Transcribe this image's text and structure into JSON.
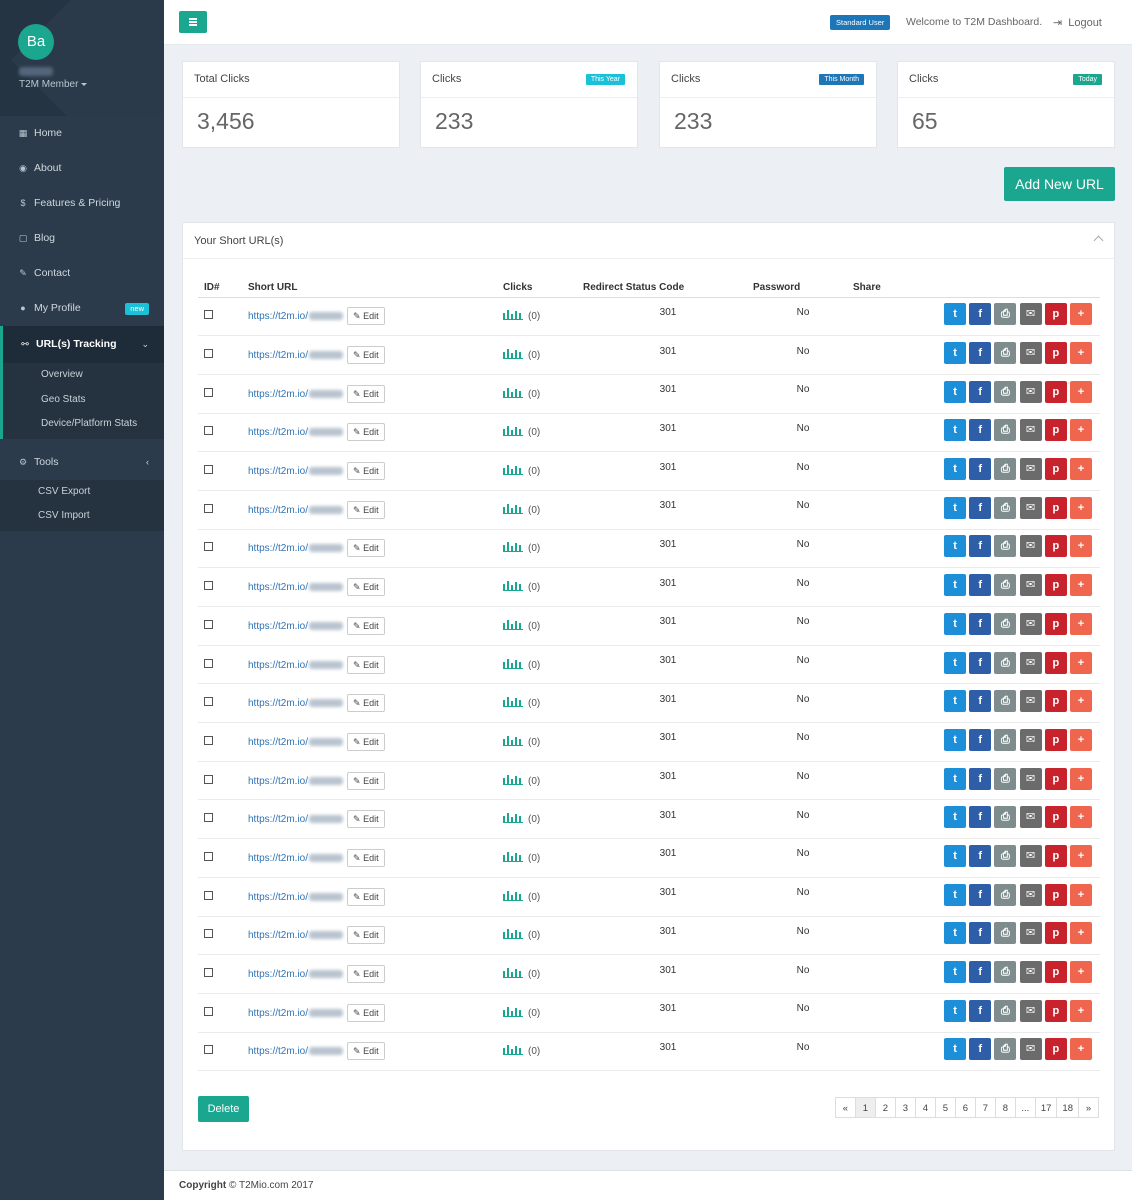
{
  "sidebar": {
    "avatar_initials": "Ba",
    "user_role": "T2M Member",
    "menu": [
      {
        "label": "Home",
        "icon": "grid-icon"
      },
      {
        "label": "About",
        "icon": "globe-icon"
      },
      {
        "label": "Features & Pricing",
        "icon": "dollar-icon"
      },
      {
        "label": "Blog",
        "icon": "blog-icon"
      },
      {
        "label": "Contact",
        "icon": "edit-icon"
      },
      {
        "label": "My Profile",
        "icon": "user-icon",
        "badge": "new"
      }
    ],
    "tracking": {
      "label": "URL(s) Tracking",
      "sub": [
        "Overview",
        "Geo Stats",
        "Device/Platform Stats"
      ]
    },
    "tools": {
      "label": "Tools",
      "sub": [
        "CSV Export",
        "CSV Import"
      ]
    }
  },
  "header": {
    "role_badge": "Standard User",
    "welcome": "Welcome to T2M Dashboard.",
    "logout": "Logout"
  },
  "stats": [
    {
      "title": "Total Clicks",
      "tag": "",
      "value": "3,456"
    },
    {
      "title": "Clicks",
      "tag": "This Year",
      "value": "233"
    },
    {
      "title": "Clicks",
      "tag": "This Month",
      "value": "233"
    },
    {
      "title": "Clicks",
      "tag": "Today",
      "value": "65"
    }
  ],
  "add_button": "Add New URL",
  "panel": {
    "title": "Your Short URL(s)",
    "columns": {
      "id": "ID#",
      "url": "Short URL",
      "clicks": "Clicks",
      "code": "Redirect Status Code",
      "password": "Password",
      "share": "Share"
    },
    "rows": [
      {
        "url": "https://t2m.io/",
        "clicks": "(0)",
        "code": "301",
        "password": "No",
        "edit": "Edit"
      },
      {
        "url": "https://t2m.io/",
        "clicks": "(0)",
        "code": "301",
        "password": "No",
        "edit": "Edit"
      },
      {
        "url": "https://t2m.io/",
        "clicks": "(0)",
        "code": "301",
        "password": "No",
        "edit": "Edit"
      },
      {
        "url": "https://t2m.io/",
        "clicks": "(0)",
        "code": "301",
        "password": "No",
        "edit": "Edit"
      },
      {
        "url": "https://t2m.io/",
        "clicks": "(0)",
        "code": "301",
        "password": "No",
        "edit": "Edit"
      },
      {
        "url": "https://t2m.io/",
        "clicks": "(0)",
        "code": "301",
        "password": "No",
        "edit": "Edit"
      },
      {
        "url": "https://t2m.io/",
        "clicks": "(0)",
        "code": "301",
        "password": "No",
        "edit": "Edit"
      },
      {
        "url": "https://t2m.io/",
        "clicks": "(0)",
        "code": "301",
        "password": "No",
        "edit": "Edit"
      },
      {
        "url": "https://t2m.io/",
        "clicks": "(0)",
        "code": "301",
        "password": "No",
        "edit": "Edit"
      },
      {
        "url": "https://t2m.io/",
        "clicks": "(0)",
        "code": "301",
        "password": "No",
        "edit": "Edit"
      },
      {
        "url": "https://t2m.io/",
        "clicks": "(0)",
        "code": "301",
        "password": "No",
        "edit": "Edit"
      },
      {
        "url": "https://t2m.io/",
        "clicks": "(0)",
        "code": "301",
        "password": "No",
        "edit": "Edit"
      },
      {
        "url": "https://t2m.io/",
        "clicks": "(0)",
        "code": "301",
        "password": "No",
        "edit": "Edit"
      },
      {
        "url": "https://t2m.io/",
        "clicks": "(0)",
        "code": "301",
        "password": "No",
        "edit": "Edit"
      },
      {
        "url": "https://t2m.io/",
        "clicks": "(0)",
        "code": "301",
        "password": "No",
        "edit": "Edit"
      },
      {
        "url": "https://t2m.io/",
        "clicks": "(0)",
        "code": "301",
        "password": "No",
        "edit": "Edit"
      },
      {
        "url": "https://t2m.io/",
        "clicks": "(0)",
        "code": "301",
        "password": "No",
        "edit": "Edit"
      },
      {
        "url": "https://t2m.io/",
        "clicks": "(0)",
        "code": "301",
        "password": "No",
        "edit": "Edit"
      },
      {
        "url": "https://t2m.io/",
        "clicks": "(0)",
        "code": "301",
        "password": "No",
        "edit": "Edit"
      },
      {
        "url": "https://t2m.io/",
        "clicks": "(0)",
        "code": "301",
        "password": "No",
        "edit": "Edit"
      }
    ],
    "share_buttons": [
      {
        "name": "twitter-share-button",
        "icon": "twitter-icon",
        "glyph": "t",
        "color": "#1d8fd9"
      },
      {
        "name": "facebook-share-button",
        "icon": "facebook-icon",
        "glyph": "f",
        "color": "#2e5ea8"
      },
      {
        "name": "print-share-button",
        "icon": "print-icon",
        "glyph": "⎙",
        "color": "#7f8c8d"
      },
      {
        "name": "email-share-button",
        "icon": "email-icon",
        "glyph": "✉",
        "color": "#6b6b6b"
      },
      {
        "name": "pinterest-share-button",
        "icon": "pinterest-icon",
        "glyph": "p",
        "color": "#c8232c"
      },
      {
        "name": "more-share-button",
        "icon": "plus-icon",
        "glyph": "+",
        "color": "#f0654d"
      }
    ],
    "delete": "Delete",
    "pagination": [
      "«",
      "1",
      "2",
      "3",
      "4",
      "5",
      "6",
      "7",
      "8",
      "...",
      "17",
      "18",
      "»"
    ],
    "current_page": "1"
  },
  "footer": {
    "prefix": "Copyright",
    "text": "© T2Mio.com 2017"
  },
  "colors": {
    "accent": "#1aa68f",
    "sidebar": "#2c3b4b",
    "link": "#2f74b5",
    "this_year": "#1ac1d9",
    "this_month": "#1d76b8",
    "today": "#1aa68f"
  }
}
